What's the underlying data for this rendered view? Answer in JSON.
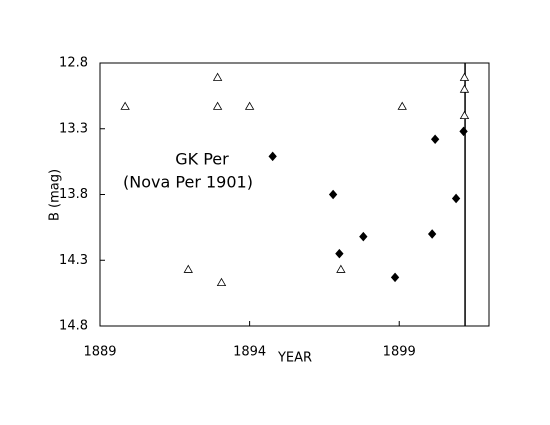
{
  "chart_data": {
    "type": "scatter",
    "x_label": "YEAR",
    "y_label": "B (mag)",
    "annotation": [
      "GK Per",
      "(Nova Per 1901)"
    ],
    "xlim": [
      1889,
      1902
    ],
    "xticks": [
      1889,
      1894,
      1899
    ],
    "ylim": [
      12.8,
      14.8
    ],
    "y_inverted": true,
    "yticks": [
      12.8,
      13.3,
      13.8,
      14.3,
      14.8
    ],
    "reference_line_x": 1901.2,
    "series": [
      {
        "marker": "open-triangle",
        "color": "#000000",
        "x": [
          1889.84,
          1891.95,
          1892.93,
          1892.93,
          1893.06,
          1894.0,
          1897.05,
          1899.1,
          1901.18,
          1901.18,
          1901.18
        ],
        "values": [
          13.13,
          14.37,
          12.91,
          13.13,
          14.47,
          13.13,
          14.37,
          13.13,
          12.91,
          13.0,
          13.2
        ]
      },
      {
        "marker": "filled-diamond",
        "color": "#000000",
        "x": [
          1894.77,
          1896.79,
          1897.0,
          1897.8,
          1898.86,
          1900.1,
          1900.2,
          1900.9,
          1901.15
        ],
        "values": [
          13.51,
          13.8,
          14.25,
          14.12,
          14.43,
          14.1,
          13.38,
          13.83,
          13.32
        ]
      }
    ]
  }
}
